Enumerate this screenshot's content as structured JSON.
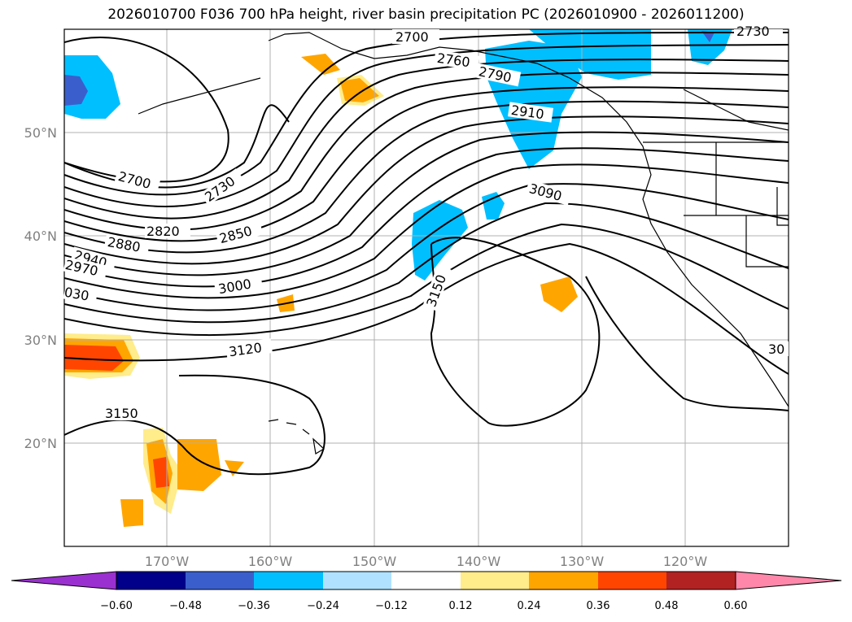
{
  "title": "2026010700 F036 700 hPa height, river basin precipitation PC (2026010900 - 2026011200)",
  "lon_labels": [
    "170°W",
    "160°W",
    "150°W",
    "140°W",
    "130°W",
    "120°W"
  ],
  "lat_labels": [
    "50°N",
    "40°N",
    "30°N",
    "20°N"
  ],
  "contour_labels": [
    "2700",
    "2760",
    "2790",
    "2730",
    "2910",
    "2700",
    "2730",
    "3090",
    "2820",
    "2850",
    "2880",
    "2940",
    "2970",
    "3000",
    "030",
    "3150",
    "3120",
    "3150",
    "30"
  ],
  "colorbar": {
    "ticks": [
      "−0.60",
      "−0.48",
      "−0.36",
      "−0.24",
      "−0.12",
      "0.12",
      "0.24",
      "0.36",
      "0.48",
      "0.60"
    ],
    "colors": [
      "#9b30d0",
      "#00008b",
      "#3a5fcd",
      "#00bfff",
      "#b0e2ff",
      "#ffffff",
      "#ffec8b",
      "#ffa500",
      "#ff4500",
      "#b22222",
      "#ff88aa",
      "#ff88aa"
    ]
  },
  "colors": {
    "negative_strong": "#3a5fcd",
    "negative": "#00bfff",
    "negative_weak": "#b0e2ff",
    "positive_weak": "#ffec8b",
    "positive": "#ffa500",
    "positive_strong": "#ff4500"
  }
}
